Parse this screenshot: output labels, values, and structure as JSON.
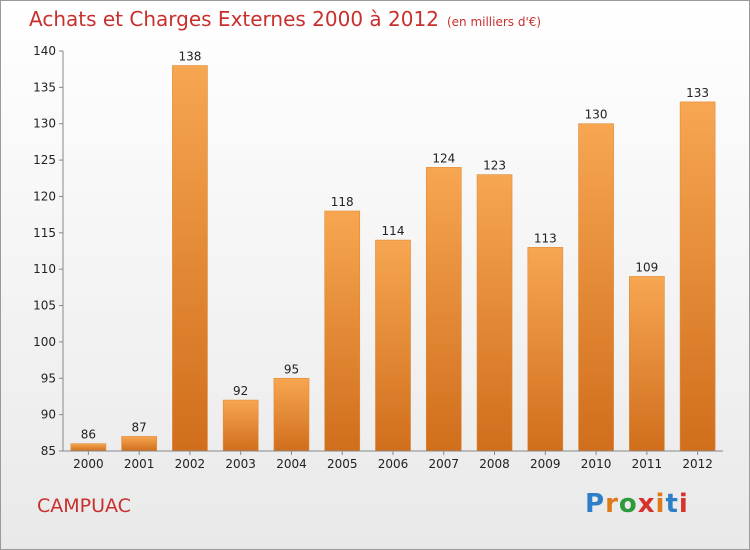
{
  "header": {
    "title": "Achats et Charges Externes 2000 à 2012",
    "unit": "(en milliers d'€)"
  },
  "footer": {
    "commune": "CAMPUAC",
    "logo": {
      "text": "Proxiti",
      "letter_colors": [
        "#2f7fc8",
        "#e07a18",
        "#2f9a3a",
        "#d8322c",
        "#e07a18",
        "#2f7fc8",
        "#d8322c"
      ]
    }
  },
  "chart_data": {
    "type": "bar",
    "title": "Achats et Charges Externes 2000 à 2012",
    "subtitle": "(en milliers d'€)",
    "categories": [
      "2000",
      "2001",
      "2002",
      "2003",
      "2004",
      "2005",
      "2006",
      "2007",
      "2008",
      "2009",
      "2010",
      "2011",
      "2012"
    ],
    "values": [
      86,
      87,
      138,
      92,
      95,
      118,
      114,
      124,
      123,
      113,
      130,
      109,
      133
    ],
    "ylim": [
      85,
      140
    ],
    "yticks": [
      85,
      90,
      95,
      100,
      105,
      110,
      115,
      120,
      125,
      130,
      135,
      140
    ],
    "grid": false,
    "colors": {
      "bar_light": "#f7a651",
      "bar_dark": "#d06e1c",
      "axis": "#888888"
    }
  }
}
